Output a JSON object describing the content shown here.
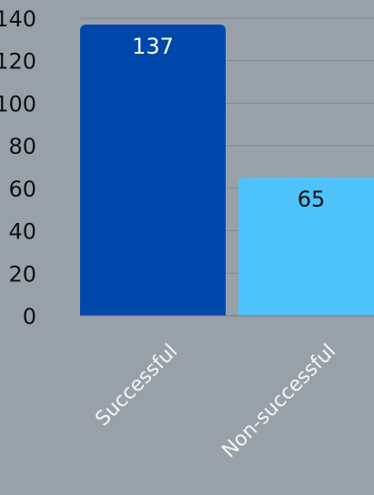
{
  "chart_data": {
    "type": "bar",
    "categories": [
      "Successful",
      "Non-successful"
    ],
    "values": [
      137,
      65
    ],
    "data_labels": [
      "137",
      "65"
    ],
    "ylim": [
      0,
      140
    ],
    "yticks": [
      0,
      20,
      40,
      60,
      80,
      100,
      120,
      140
    ],
    "ytick_labels": [
      "0",
      "20",
      "40",
      "60",
      "80",
      "100",
      "120",
      "140"
    ],
    "grid": true,
    "title": "",
    "xlabel": "",
    "ylabel": "",
    "colors": [
      "#0047ab",
      "#4ec3fb"
    ],
    "data_label_colors": [
      "#ffffff",
      "#111111"
    ],
    "gridline_color": "#7f8891",
    "axis_color": "#6f7880"
  }
}
